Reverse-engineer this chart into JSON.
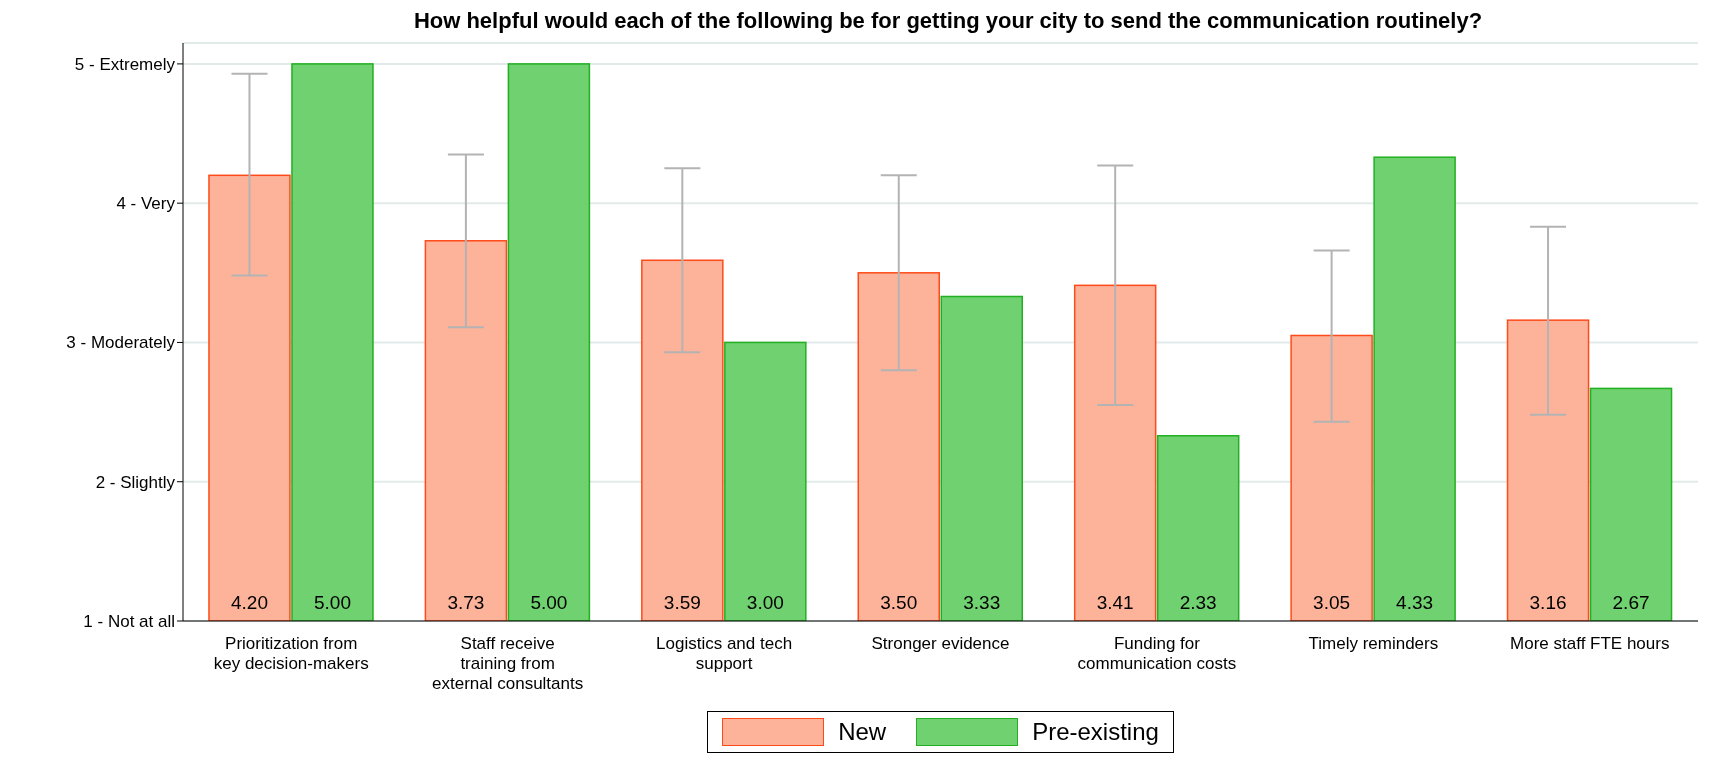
{
  "chart_data": {
    "type": "bar",
    "title": "How helpful would each of the following be for getting your city to send the communication routinely?",
    "categories": [
      "Prioritization from key decision-makers",
      "Staff receive training from external consultants",
      "Logistics and tech support",
      "Stronger evidence",
      "Funding for communication costs",
      "Timely reminders",
      "More staff FTE hours"
    ],
    "series": [
      {
        "name": "New",
        "color": "#fdb39a",
        "values": [
          4.2,
          3.73,
          3.59,
          3.5,
          3.41,
          3.05,
          3.16
        ],
        "value_labels": [
          "4.20",
          "3.73",
          "3.59",
          "3.50",
          "3.41",
          "3.05",
          "3.16"
        ],
        "errors": [
          [
            3.48,
            4.93
          ],
          [
            3.11,
            4.35
          ],
          [
            2.93,
            4.25
          ],
          [
            2.8,
            4.2
          ],
          [
            2.55,
            4.27
          ],
          [
            2.43,
            3.66
          ],
          [
            2.48,
            3.83
          ]
        ]
      },
      {
        "name": "Pre-existing",
        "color": "#6fd16f",
        "values": [
          5.0,
          5.0,
          3.0,
          3.33,
          2.33,
          4.33,
          2.67
        ],
        "value_labels": [
          "5.00",
          "5.00",
          "3.00",
          "3.33",
          "2.33",
          "4.33",
          "2.67"
        ]
      }
    ],
    "ylim": [
      1,
      5.15
    ],
    "yticks": [
      {
        "value": 1,
        "label": "1 - Not at all"
      },
      {
        "value": 2,
        "label": "2 - Slightly"
      },
      {
        "value": 3,
        "label": "3 - Moderately"
      },
      {
        "value": 4,
        "label": "4 - Very"
      },
      {
        "value": 5,
        "label": "5 - Extremely"
      }
    ],
    "grid": "y",
    "legend": "bottom"
  }
}
